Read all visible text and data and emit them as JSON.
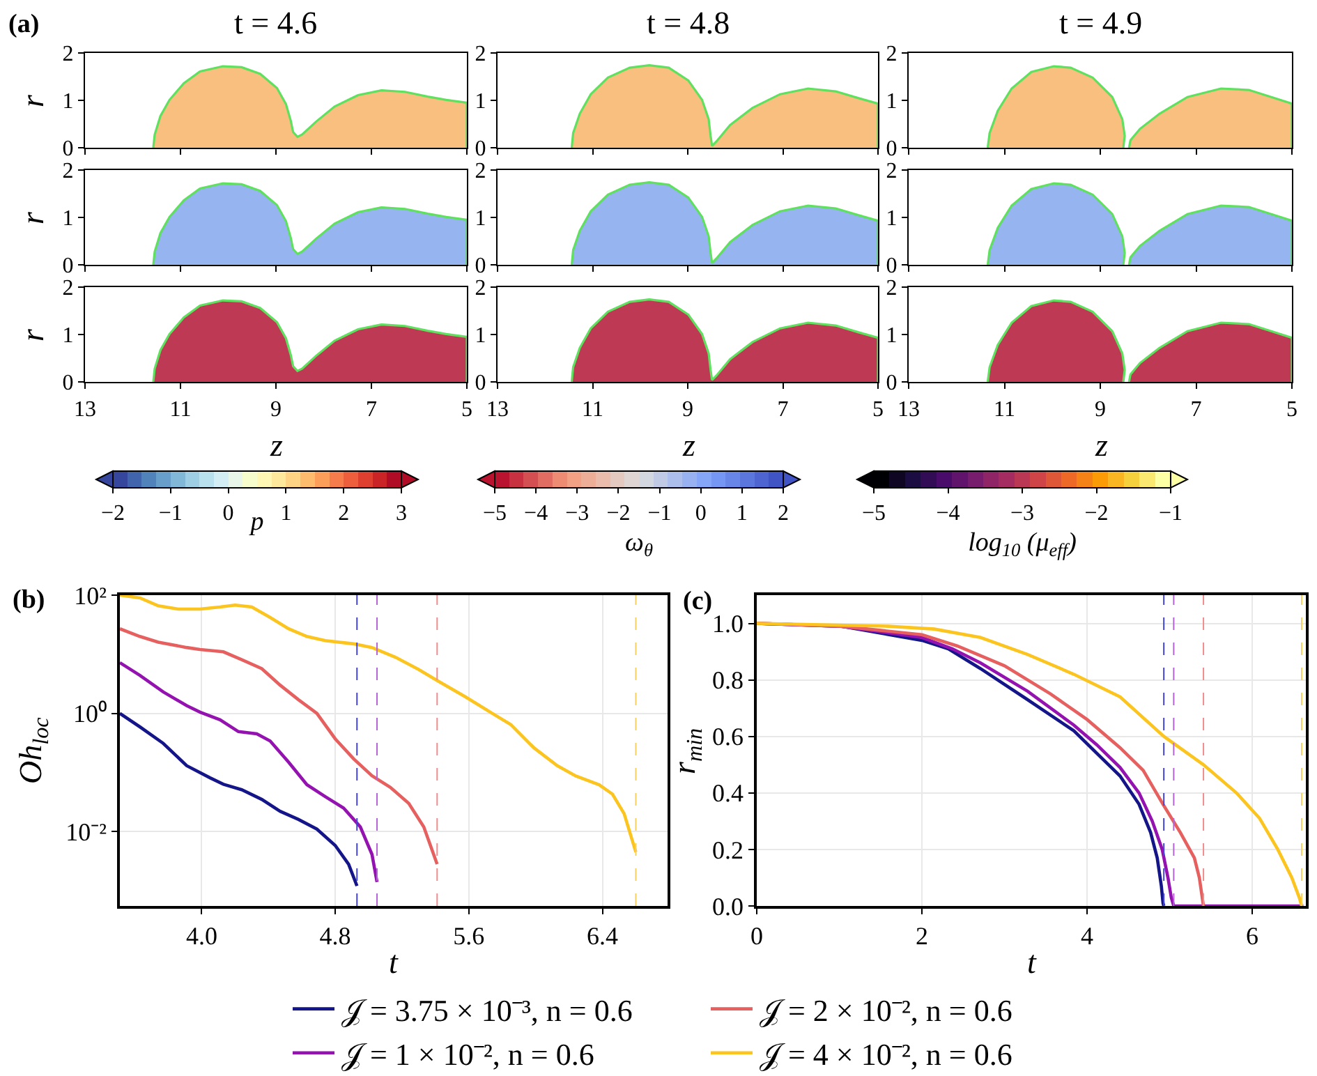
{
  "chart_data": [
    {
      "type": "area",
      "title": "t = 4.6",
      "ylabel": "r",
      "annotations": [
        "(a)"
      ],
      "clabel": "p",
      "clim": [
        -2,
        3
      ],
      "cticks": [
        -2,
        -1,
        0,
        1,
        2,
        3
      ],
      "colors": [
        "#36469d",
        "#4065ac",
        "#5183bb",
        "#689fca",
        "#82b8d7",
        "#9dcee3",
        "#b8e0ed",
        "#d3edf4",
        "#e8f6ea",
        "#f7fccd",
        "#fff7b3",
        "#fee89c",
        "#fed484",
        "#fdbb6d",
        "#fb9e5a",
        "#f67d4b",
        "#ed5e3c",
        "#de3f2e",
        "#ca2427",
        "#b10c26"
      ],
      "xlim": [
        13,
        5
      ],
      "ylim": [
        0,
        2
      ],
      "xticks": [
        13,
        11,
        9,
        7,
        5
      ],
      "yticks": [
        0,
        1,
        2
      ],
      "tick_labels": "y",
      "series": [
        {
          "type": "area",
          "color": "#f8bf7e",
          "x": [
            11.57,
            11.54,
            11.42,
            11.23,
            10.93,
            10.59,
            10.11,
            9.72,
            9.33,
            8.98,
            8.79,
            8.69,
            8.64,
            8.55,
            8.45,
            8.16,
            7.77,
            7.28,
            6.79,
            6.3,
            5.82,
            5.43,
            5.0,
            5.0
          ],
          "values": [
            0,
            0.28,
            0.67,
            1.01,
            1.36,
            1.61,
            1.72,
            1.7,
            1.56,
            1.26,
            0.92,
            0.57,
            0.33,
            0.23,
            0.28,
            0.55,
            0.87,
            1.11,
            1.21,
            1.18,
            1.08,
            1.01,
            0.95,
            0
          ]
        }
      ]
    },
    {
      "type": "area",
      "title": "t = 4.8",
      "xlim": [
        13,
        5
      ],
      "ylim": [
        0,
        2
      ],
      "xticks": [
        13,
        11,
        9,
        7,
        5
      ],
      "yticks": [
        0,
        1,
        2
      ],
      "tick_labels": "y",
      "series": [
        {
          "type": "area",
          "color": "#f8bf7e",
          "x": [
            11.44,
            11.41,
            11.27,
            11.04,
            10.68,
            10.22,
            9.81,
            9.4,
            8.99,
            8.7,
            8.56,
            8.52,
            8.49,
            8.4,
            8.11,
            7.64,
            7.06,
            6.47,
            5.89,
            5.42,
            5.0,
            5.0
          ],
          "values": [
            0,
            0.31,
            0.72,
            1.13,
            1.48,
            1.69,
            1.74,
            1.69,
            1.42,
            1.01,
            0.6,
            0.25,
            0.04,
            0.13,
            0.48,
            0.84,
            1.13,
            1.25,
            1.19,
            1.05,
            0.93,
            0
          ]
        }
      ]
    },
    {
      "type": "area",
      "title": "t = 4.9",
      "xlim": [
        13,
        5
      ],
      "ylim": [
        0,
        2
      ],
      "xticks": [
        13,
        11,
        9,
        7,
        5
      ],
      "yticks": [
        0,
        1,
        2
      ],
      "tick_labels": "y",
      "series": [
        {
          "type": "area",
          "color": "#f8bf7e",
          "x": [
            11.35,
            11.31,
            11.14,
            10.85,
            10.44,
            9.97,
            9.62,
            9.16,
            8.75,
            8.54,
            8.49,
            8.52,
            8.46,
            8.4,
            8.37,
            8.17,
            7.76,
            7.18,
            6.48,
            5.9,
            5.43,
            5.0,
            5.0
          ],
          "values": [
            0,
            0.31,
            0.78,
            1.25,
            1.6,
            1.72,
            1.69,
            1.48,
            1.07,
            0.6,
            0.25,
            0,
            null,
            0,
            0.16,
            0.4,
            0.72,
            1.07,
            1.25,
            1.22,
            1.07,
            0.93,
            0
          ]
        }
      ]
    },
    {
      "type": "area",
      "ylabel": "r",
      "clabel": "ω$_{θ}$",
      "clim": [
        -5,
        2
      ],
      "cticks": [
        -5,
        -4,
        -3,
        -2,
        -1,
        0,
        1,
        2
      ],
      "colors": [
        "#ba132f",
        "#c73140",
        "#d44f51",
        "#e16d62",
        "#ee8b73",
        "#f2a185",
        "#edae98",
        "#e9bcac",
        "#e4c9c0",
        "#dfd6d3",
        "#d3d7e0",
        "#c0cae5",
        "#acbeeb",
        "#98b2f1",
        "#85a5f6",
        "#7597f3",
        "#6886e8",
        "#5b76dd",
        "#4e65d1",
        "#4154c6"
      ],
      "xlim": [
        13,
        5
      ],
      "ylim": [
        0,
        2
      ],
      "xticks": [
        13,
        11,
        9,
        7,
        5
      ],
      "yticks": [
        0,
        1,
        2
      ],
      "tick_labels": "y",
      "series": [
        {
          "type": "area",
          "color": "#96b4f0",
          "x": [
            11.57,
            11.54,
            11.42,
            11.23,
            10.93,
            10.59,
            10.11,
            9.72,
            9.33,
            8.98,
            8.79,
            8.69,
            8.64,
            8.55,
            8.45,
            8.16,
            7.77,
            7.28,
            6.79,
            6.3,
            5.82,
            5.43,
            5.0,
            5.0
          ],
          "values": [
            0,
            0.28,
            0.67,
            1.01,
            1.36,
            1.61,
            1.72,
            1.7,
            1.56,
            1.26,
            0.92,
            0.57,
            0.33,
            0.23,
            0.28,
            0.55,
            0.87,
            1.11,
            1.21,
            1.18,
            1.08,
            1.01,
            0.95,
            0
          ]
        }
      ]
    },
    {
      "type": "area",
      "xlim": [
        13,
        5
      ],
      "ylim": [
        0,
        2
      ],
      "xticks": [
        13,
        11,
        9,
        7,
        5
      ],
      "yticks": [
        0,
        1,
        2
      ],
      "tick_labels": "y",
      "series": [
        {
          "type": "area",
          "color": "#96b4f0",
          "x": [
            11.44,
            11.41,
            11.27,
            11.04,
            10.68,
            10.22,
            9.81,
            9.4,
            8.99,
            8.7,
            8.56,
            8.52,
            8.49,
            8.4,
            8.11,
            7.64,
            7.06,
            6.47,
            5.89,
            5.42,
            5.0,
            5.0
          ],
          "values": [
            0,
            0.31,
            0.72,
            1.13,
            1.48,
            1.69,
            1.74,
            1.69,
            1.42,
            1.01,
            0.6,
            0.25,
            0.04,
            0.13,
            0.48,
            0.84,
            1.13,
            1.25,
            1.19,
            1.05,
            0.93,
            0
          ]
        }
      ]
    },
    {
      "type": "area",
      "xlim": [
        13,
        5
      ],
      "ylim": [
        0,
        2
      ],
      "xticks": [
        13,
        11,
        9,
        7,
        5
      ],
      "yticks": [
        0,
        1,
        2
      ],
      "tick_labels": "y",
      "series": [
        {
          "type": "area",
          "color": "#96b4f0",
          "x": [
            11.35,
            11.31,
            11.14,
            10.85,
            10.44,
            9.97,
            9.62,
            9.16,
            8.75,
            8.54,
            8.49,
            8.52,
            8.46,
            8.4,
            8.37,
            8.17,
            7.76,
            7.18,
            6.48,
            5.9,
            5.43,
            5.0,
            5.0
          ],
          "values": [
            0,
            0.31,
            0.78,
            1.25,
            1.6,
            1.72,
            1.69,
            1.48,
            1.07,
            0.6,
            0.25,
            0,
            null,
            0,
            0.16,
            0.4,
            0.72,
            1.07,
            1.25,
            1.22,
            1.07,
            0.93,
            0
          ]
        }
      ]
    },
    {
      "type": "area",
      "ylabel": "r",
      "xlabel": "z",
      "clabel": "log$_{10}$ (μ$_{eff}$)",
      "clim": [
        -5,
        -1
      ],
      "cticks": [
        -5,
        -4,
        -3,
        -2,
        -1
      ],
      "colors": [
        "#000004",
        "#0e0623",
        "#1b0c41",
        "#330c56",
        "#4a0c6b",
        "#61146c",
        "#781c6d",
        "#8f2467",
        "#a52c60",
        "#ba3853",
        "#cf4446",
        "#de5736",
        "#ed6925",
        "#f48216",
        "#fb9b06",
        "#f9b622",
        "#f7d13d",
        "#fae871",
        "#fcffa4"
      ],
      "xlim": [
        13,
        5
      ],
      "ylim": [
        0,
        2
      ],
      "xticks": [
        13,
        11,
        9,
        7,
        5
      ],
      "yticks": [
        0,
        1,
        2
      ],
      "series": [
        {
          "type": "area",
          "color": "#be3954",
          "x": [
            11.57,
            11.54,
            11.42,
            11.23,
            10.93,
            10.59,
            10.11,
            9.72,
            9.33,
            8.98,
            8.79,
            8.69,
            8.64,
            8.55,
            8.45,
            8.16,
            7.77,
            7.28,
            6.79,
            6.3,
            5.82,
            5.43,
            5.0,
            5.0
          ],
          "values": [
            0,
            0.28,
            0.67,
            1.01,
            1.36,
            1.61,
            1.72,
            1.7,
            1.56,
            1.26,
            0.92,
            0.57,
            0.33,
            0.23,
            0.28,
            0.55,
            0.87,
            1.11,
            1.21,
            1.18,
            1.08,
            1.01,
            0.95,
            0
          ]
        }
      ]
    },
    {
      "type": "area",
      "xlabel": "z",
      "xlim": [
        13,
        5
      ],
      "ylim": [
        0,
        2
      ],
      "xticks": [
        13,
        11,
        9,
        7,
        5
      ],
      "yticks": [
        0,
        1,
        2
      ],
      "series": [
        {
          "type": "area",
          "color": "#be3954",
          "x": [
            11.44,
            11.41,
            11.27,
            11.04,
            10.68,
            10.22,
            9.81,
            9.4,
            8.99,
            8.7,
            8.56,
            8.52,
            8.49,
            8.4,
            8.11,
            7.64,
            7.06,
            6.47,
            5.89,
            5.42,
            5.0,
            5.0
          ],
          "values": [
            0,
            0.31,
            0.72,
            1.13,
            1.48,
            1.69,
            1.74,
            1.69,
            1.42,
            1.01,
            0.6,
            0.25,
            0.04,
            0.13,
            0.48,
            0.84,
            1.13,
            1.25,
            1.19,
            1.05,
            0.93,
            0
          ]
        }
      ]
    },
    {
      "type": "area",
      "xlabel": "z",
      "xlim": [
        13,
        5
      ],
      "ylim": [
        0,
        2
      ],
      "xticks": [
        13,
        11,
        9,
        7,
        5
      ],
      "yticks": [
        0,
        1,
        2
      ],
      "series": [
        {
          "type": "area",
          "color": "#be3954",
          "x": [
            11.35,
            11.31,
            11.14,
            10.85,
            10.44,
            9.97,
            9.62,
            9.16,
            8.75,
            8.54,
            8.49,
            8.52,
            8.46,
            8.4,
            8.37,
            8.17,
            7.76,
            7.18,
            6.48,
            5.9,
            5.43,
            5.0,
            5.0
          ],
          "values": [
            0,
            0.31,
            0.78,
            1.25,
            1.6,
            1.72,
            1.69,
            1.48,
            1.07,
            0.6,
            0.25,
            0,
            null,
            0,
            0.16,
            0.4,
            0.72,
            1.07,
            1.25,
            1.22,
            1.07,
            0.93,
            0
          ]
        }
      ]
    },
    {
      "type": "line",
      "xlabel": "t",
      "ylabel": "Oh$_{loc}$",
      "annotations": [
        "(b)"
      ],
      "log": true,
      "grid": true,
      "legend": "bottom",
      "xlim": [
        3.51,
        6.79
      ],
      "ylim": [
        0.00055,
        100
      ],
      "xticks": [
        {
          "value": 4,
          "label": "4.0"
        },
        4.8,
        5.6,
        6.4
      ],
      "yticks": [
        {
          "value": 0.01,
          "label": "10⁻²"
        },
        {
          "value": 1,
          "label": "10⁰"
        },
        {
          "value": 100,
          "label": "10²"
        }
      ],
      "ref_lines": [
        {
          "axis": "x",
          "value": 4.93,
          "color": "#4444d4",
          "line_style": "dashed"
        },
        {
          "axis": "x",
          "value": 5.05,
          "color": "#b563d6",
          "line_style": "dashed"
        },
        {
          "axis": "x",
          "value": 5.41,
          "color": "#f28c8c",
          "line_style": "dashed"
        },
        {
          "axis": "x",
          "value": 6.6,
          "color": "#f8d060",
          "line_style": "dashed"
        }
      ],
      "series": [
        {
          "name": "𝒥 = 3.75 × 10⁻³, n = 0.6",
          "color": "#15158a",
          "x": [
            3.51,
            3.63,
            3.77,
            3.91,
            4.05,
            4.13,
            4.24,
            4.36,
            4.47,
            4.58,
            4.69,
            4.8,
            4.88,
            4.93
          ],
          "values": [
            1.0,
            0.59,
            0.31,
            0.13,
            0.081,
            0.063,
            0.051,
            0.035,
            0.022,
            0.016,
            0.011,
            0.0058,
            0.0028,
            0.0012
          ]
        },
        {
          "name": "𝒥 = 1 × 10⁻², n = 0.6",
          "color": "#9312b0",
          "x": [
            3.51,
            3.63,
            3.77,
            3.91,
            3.99,
            4.11,
            4.22,
            4.33,
            4.41,
            4.52,
            4.63,
            4.74,
            4.85,
            4.95,
            5.02,
            5.05
          ],
          "values": [
            7.2,
            4.4,
            2.3,
            1.35,
            1.05,
            0.78,
            0.49,
            0.45,
            0.34,
            0.15,
            0.062,
            0.039,
            0.025,
            0.012,
            0.0041,
            0.0014
          ]
        },
        {
          "name": "𝒥 = 2 × 10⁻², n = 0.6",
          "color": "#e5605f",
          "x": [
            3.51,
            3.63,
            3.74,
            3.91,
            3.99,
            4.13,
            4.24,
            4.36,
            4.47,
            4.58,
            4.69,
            4.8,
            4.91,
            5.02,
            5.13,
            5.24,
            5.33,
            5.41
          ],
          "values": [
            27,
            20,
            16,
            13,
            12,
            11,
            8.1,
            5.7,
            3.0,
            1.7,
            1.0,
            0.37,
            0.17,
            0.088,
            0.056,
            0.03,
            0.012,
            0.0028
          ]
        },
        {
          "name": "𝒥 = 4 × 10⁻², n = 0.6",
          "color": "#fcc41e",
          "x": [
            3.51,
            3.63,
            3.74,
            3.86,
            3.99,
            4.11,
            4.2,
            4.3,
            4.41,
            4.52,
            4.63,
            4.74,
            4.91,
            5.02,
            5.16,
            5.3,
            5.41,
            5.58,
            5.74,
            5.85,
            5.99,
            6.13,
            6.24,
            6.38,
            6.46,
            6.53,
            6.6
          ],
          "values": [
            100,
            90,
            66,
            58,
            58,
            63,
            68,
            63,
            42,
            27,
            20,
            17,
            15,
            13,
            8.9,
            5.5,
            3.6,
            1.9,
            1.0,
            0.65,
            0.26,
            0.13,
            0.087,
            0.062,
            0.043,
            0.02,
            0.0045
          ]
        }
      ]
    },
    {
      "type": "line",
      "xlabel": "t",
      "ylabel": "r$_{min}$",
      "annotations": [
        "(c)"
      ],
      "grid": true,
      "xlim": [
        0,
        6.65
      ],
      "ylim": [
        0,
        1.1
      ],
      "xticks": [
        0,
        2,
        4,
        6
      ],
      "yticks": [
        {
          "value": 0,
          "label": "0.0"
        },
        0.2,
        0.4,
        0.6,
        0.8,
        {
          "value": 1,
          "label": "1.0"
        }
      ],
      "ref_lines": [
        {
          "axis": "x",
          "value": 4.93,
          "color": "#4444d4",
          "line_style": "dashed"
        },
        {
          "axis": "x",
          "value": 5.05,
          "color": "#b563d6",
          "line_style": "dashed"
        },
        {
          "axis": "x",
          "value": 5.41,
          "color": "#f28c8c",
          "line_style": "dashed"
        },
        {
          "axis": "x",
          "value": 6.6,
          "color": "#f8d060",
          "line_style": "dashed"
        }
      ],
      "series": [
        {
          "color": "#15158a",
          "x": [
            0,
            1.02,
            2.0,
            2.32,
            2.71,
            3.28,
            3.84,
            4.12,
            4.4,
            4.63,
            4.77,
            4.85,
            4.9,
            4.92,
            4.93
          ],
          "values": [
            1.0,
            0.99,
            0.94,
            0.91,
            0.84,
            0.73,
            0.62,
            0.54,
            0.46,
            0.36,
            0.26,
            0.17,
            0.07,
            0.01,
            0
          ]
        },
        {
          "color": "#9312b0",
          "x": [
            0,
            1.02,
            2.0,
            2.37,
            2.71,
            3.28,
            3.84,
            4.12,
            4.4,
            4.63,
            4.79,
            4.91,
            4.98,
            5.02,
            5.05,
            6.62
          ],
          "values": [
            1.0,
            0.99,
            0.95,
            0.91,
            0.86,
            0.76,
            0.64,
            0.57,
            0.49,
            0.4,
            0.3,
            0.2,
            0.1,
            0.03,
            0,
            0
          ]
        },
        {
          "color": "#e5605f",
          "x": [
            0,
            1.02,
            2.0,
            2.43,
            3.0,
            3.56,
            4.0,
            4.4,
            4.68,
            4.92,
            5.13,
            5.3,
            5.36,
            5.41
          ],
          "values": [
            1.0,
            0.99,
            0.96,
            0.92,
            0.85,
            0.75,
            0.66,
            0.56,
            0.48,
            0.36,
            0.26,
            0.17,
            0.1,
            0
          ]
        },
        {
          "color": "#fcc41e",
          "x": [
            0,
            1.59,
            2.15,
            2.71,
            3.28,
            3.84,
            4.4,
            4.93,
            5.41,
            5.81,
            6.09,
            6.31,
            6.48,
            6.57,
            6.6
          ],
          "values": [
            1.0,
            0.99,
            0.98,
            0.95,
            0.89,
            0.82,
            0.74,
            0.6,
            0.5,
            0.4,
            0.31,
            0.2,
            0.1,
            0.03,
            0
          ]
        }
      ]
    }
  ]
}
